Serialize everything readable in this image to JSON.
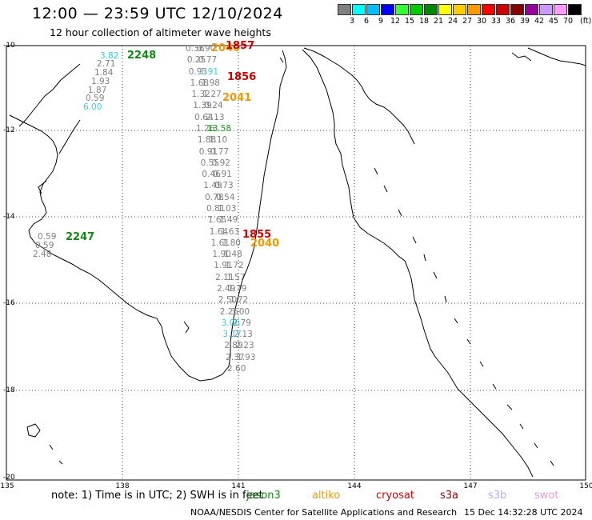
{
  "header": {
    "title": "12:00 — 23:59 UTC 12/10/2024",
    "subtitle": "12 hour collection of altimeter wave heights"
  },
  "colorbar": {
    "unit_label": "(ft)",
    "ticks": [
      "3",
      "6",
      "9",
      "12",
      "15",
      "18",
      "21",
      "24",
      "27",
      "30",
      "33",
      "36",
      "39",
      "42",
      "45",
      "70"
    ],
    "colors": [
      "#808080",
      "#00ffff",
      "#00bfff",
      "#0000ff",
      "#33ff33",
      "#00cc00",
      "#008800",
      "#ffff00",
      "#ffcc00",
      "#ff9900",
      "#ff0000",
      "#cc0000",
      "#880000",
      "#990099",
      "#cc99ff",
      "#ff99ff",
      "#000000"
    ]
  },
  "map": {
    "lat_labels": [
      "-10",
      "-12",
      "-14",
      "-16",
      "-18",
      "-20"
    ],
    "lon_labels": [
      "135",
      "138",
      "141",
      "144",
      "147",
      "150"
    ]
  },
  "passes": [
    {
      "label": "2248",
      "color": "#118811"
    },
    {
      "label": "2247",
      "color": "#118811"
    },
    {
      "label": "2040",
      "color": "#ee9900"
    },
    {
      "label": "2041",
      "color": "#ee9900"
    },
    {
      "label": "1856",
      "color": "#cc0000"
    },
    {
      "label": "1855",
      "color": "#cc0000"
    },
    {
      "label": "1857",
      "color": "#cc0000"
    },
    {
      "label": "2040",
      "color": "#ee9900"
    }
  ],
  "wave_values": [
    "3.82",
    "2.71",
    "1.84",
    "1.93",
    "1.87",
    "0.59",
    "6.00",
    "0.59",
    "0.59",
    "2.48",
    "0.36",
    "0.90",
    "0.25",
    "0.77",
    "0.93",
    "1.91",
    "1.68",
    "1.98",
    "1.32",
    "1.27",
    "1.39",
    "0.24",
    "0.64",
    "2.13",
    "1.26",
    "13.58",
    "1.88",
    "1.10",
    "0.91",
    "0.77",
    "0.55",
    "0.92",
    "0.46",
    "0.91",
    "1.49",
    "0.73",
    "0.78",
    "0.54",
    "0.81",
    "1.03",
    "1.65",
    "1.49",
    "1.64",
    "1.63",
    "1.61",
    "1.80",
    "1.90",
    "1.48",
    "1.91",
    "1.72",
    "2.11",
    "1.57",
    "2.49",
    "1.79",
    "2.50",
    "1.72",
    "2.26",
    "3.00",
    "3.06",
    "2.79",
    "3.17",
    "2.13",
    "2.89",
    "2.23",
    "2.37",
    "1.93",
    "2.60"
  ],
  "footer": {
    "note": "note:  1) Time is in UTC;  2) SWH is in feet",
    "satellites": [
      {
        "name": "jason3",
        "color": "#118811"
      },
      {
        "name": "altiko",
        "color": "#ee9900"
      },
      {
        "name": "cryosat",
        "color": "#cc0000"
      },
      {
        "name": "s3a",
        "color": "#880000"
      },
      {
        "name": "s3b",
        "color": "#bbaaee"
      },
      {
        "name": "swot",
        "color": "#ee99dd"
      }
    ],
    "credit": "NOAA/NESDIS Center for Satellite Applications and Research",
    "generated": "15 Dec 14:32:28 UTC 2024"
  }
}
